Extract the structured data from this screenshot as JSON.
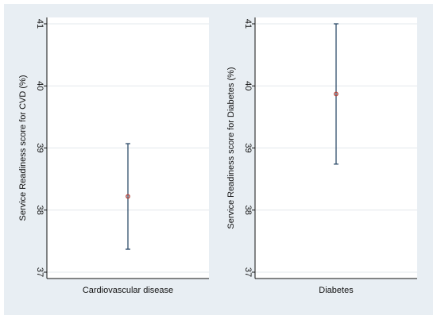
{
  "chart_data": [
    {
      "type": "errorbar",
      "ylabel": "Service  Readiness score for CVD (%)",
      "category": "Cardiovascular disease",
      "ylim": [
        37,
        41
      ],
      "yticks": [
        "37",
        "38",
        "39",
        "40",
        "41"
      ],
      "grid": true,
      "point": {
        "estimate": 38.22,
        "lower": 37.37,
        "upper": 39.07
      }
    },
    {
      "type": "errorbar",
      "ylabel": "Service  Readiness score for Diabetes (%)",
      "category": "Diabetes",
      "ylim": [
        37,
        41
      ],
      "yticks": [
        "37",
        "38",
        "39",
        "40",
        "41"
      ],
      "grid": true,
      "point": {
        "estimate": 39.87,
        "lower": 38.74,
        "upper": 41.0
      }
    }
  ],
  "colors": {
    "background": "#e8eef3",
    "plot_bg": "#ffffff",
    "grid": "#e3e8ec",
    "errorbar": "#1f3f5f",
    "marker": "#b7483f"
  }
}
